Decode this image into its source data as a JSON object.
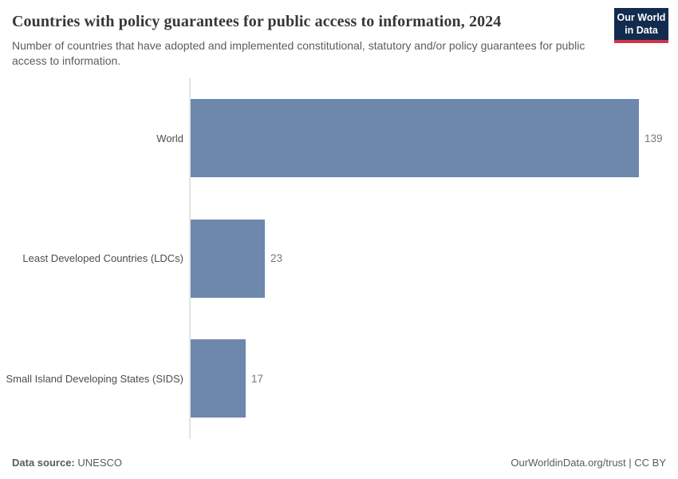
{
  "header": {
    "title": "Countries with policy guarantees for public access to information, 2024",
    "subtitle": "Number of countries that have adopted and implemented constitutional, statutory and/or policy guarantees for public access to information.",
    "logo": {
      "line1": "Our World",
      "line2": "in Data"
    }
  },
  "chart_data": {
    "type": "bar",
    "orientation": "horizontal",
    "title": "Countries with policy guarantees for public access to information, 2024",
    "categories": [
      "World",
      "Least Developed Countries (LDCs)",
      "Small Island Developing States (SIDS)"
    ],
    "values": [
      139,
      23,
      17
    ],
    "value_labels": [
      "139",
      "23",
      "17"
    ],
    "xlabel": "",
    "ylabel": "",
    "xlim": [
      0,
      139
    ],
    "grid": false,
    "legend": false,
    "bar_color": "#6e87ad",
    "axis_line_color": "#e4e4e4"
  },
  "footer": {
    "source_label": "Data source:",
    "source_value": "UNESCO",
    "attribution": "OurWorldinData.org/trust | CC BY"
  },
  "colors": {
    "bar": "#6e87ad",
    "logo_navy": "#122b4e",
    "logo_red": "#cf3648",
    "title_text": "#373737",
    "subtitle_text": "#5c5c5c"
  }
}
